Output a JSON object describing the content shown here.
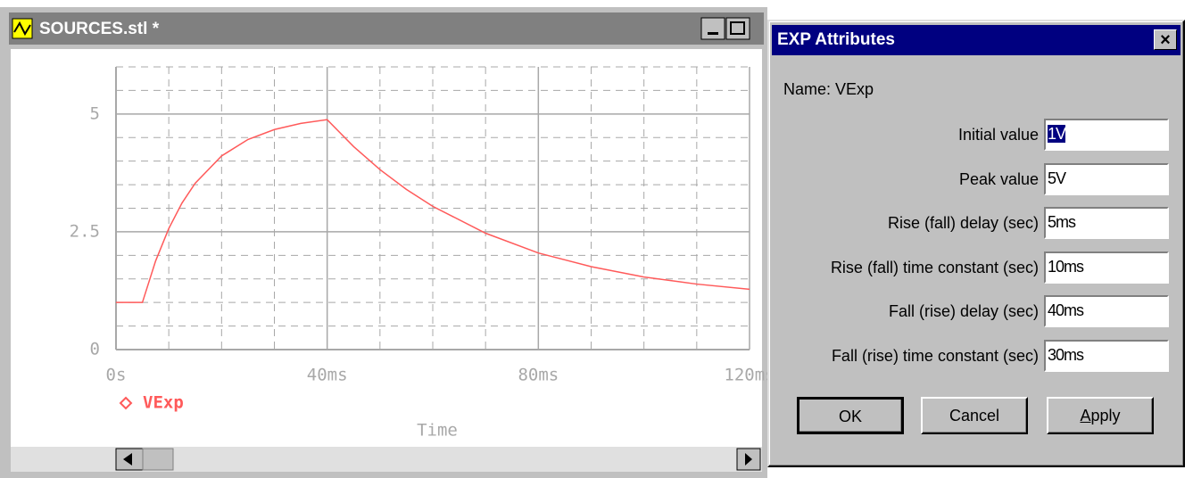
{
  "window": {
    "title": "SOURCES.stl *"
  },
  "chart_data": {
    "type": "line",
    "x": [
      0,
      0.005,
      0.0075,
      0.01,
      0.0125,
      0.015,
      0.02,
      0.025,
      0.03,
      0.035,
      0.04,
      0.045,
      0.05,
      0.055,
      0.06,
      0.07,
      0.08,
      0.09,
      0.1,
      0.11,
      0.12
    ],
    "series": [
      {
        "name": "VExp",
        "color": "#ff5a5a",
        "values": [
          1,
          1,
          1.88,
          2.57,
          3.11,
          3.53,
          4.11,
          4.46,
          4.67,
          4.8,
          4.88,
          4.31,
          3.82,
          3.4,
          3.04,
          2.47,
          2.05,
          1.76,
          1.54,
          1.39,
          1.28
        ]
      }
    ],
    "xlim": [
      0,
      0.12
    ],
    "xticks": [
      {
        "value": 0,
        "label": "0s"
      },
      {
        "value": 0.04,
        "label": "40ms"
      },
      {
        "value": 0.08,
        "label": "80ms"
      },
      {
        "value": 0.12,
        "label": "120ms"
      }
    ],
    "ylim": [
      0,
      6
    ],
    "yticks": [
      0,
      2.5,
      5
    ],
    "x_label": "Time",
    "grid": true,
    "x_minor_divisions": 4,
    "y_minor_divisions": 5
  },
  "dialog": {
    "title": "EXP Attributes",
    "name_label": "Name:",
    "name": "VExp",
    "fields": [
      {
        "label": "Initial value",
        "value": "1V"
      },
      {
        "label": "Peak value",
        "value": "5V"
      },
      {
        "label": "Rise (fall) delay (sec)",
        "value": "5ms"
      },
      {
        "label": "Rise (fall) time constant (sec)",
        "value": "10ms"
      },
      {
        "label": "Fall (rise) delay (sec)",
        "value": "40ms"
      },
      {
        "label": "Fall (rise) time constant (sec)",
        "value": "30ms"
      }
    ],
    "buttons": [
      "OK",
      "Cancel",
      "Apply"
    ]
  }
}
